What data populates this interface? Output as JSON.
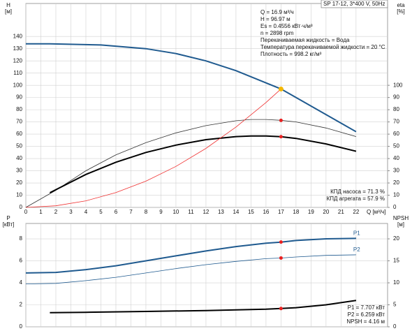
{
  "chart_data": [
    {
      "type": "line",
      "title": "SP 17-12, 3*400 V, 50Hz",
      "ylabel": [
        "H",
        "[м]"
      ],
      "y2label": [
        "eta",
        "[%]"
      ],
      "xlabel": "Q [м³/ч]",
      "xlim": [
        0,
        24.1
      ],
      "xticks": [
        0,
        1,
        2,
        3,
        4,
        5,
        6,
        7,
        8,
        9,
        10,
        11,
        12,
        13,
        14,
        15,
        16,
        17,
        18,
        19,
        20,
        21,
        22
      ],
      "ylim": [
        0,
        167
      ],
      "yticks": [
        0,
        10,
        20,
        30,
        40,
        50,
        60,
        70,
        80,
        90,
        100,
        110,
        120,
        130,
        140
      ],
      "y2lim": [
        0,
        167
      ],
      "y2ticks": [
        0,
        10,
        20,
        30,
        40,
        50,
        60,
        70,
        80,
        90,
        100
      ],
      "grid": true,
      "series": [
        {
          "color": "#1f5a8f",
          "width": 2,
          "x": [
            0,
            1.6,
            5,
            8,
            10,
            12,
            14,
            15,
            16,
            17,
            18,
            19,
            20,
            21,
            22
          ],
          "values": [
            134,
            134,
            133,
            130,
            126,
            120,
            112,
            107,
            102,
            97,
            90,
            83,
            76,
            69,
            62
          ]
        },
        {
          "color": "#333333",
          "width": 0.8,
          "axis": "y2",
          "x": [
            0,
            2,
            4,
            6,
            8,
            10,
            12,
            14,
            15,
            16,
            17,
            18,
            20,
            22
          ],
          "values": [
            0,
            14,
            30,
            43,
            53,
            61,
            67,
            71,
            72,
            72,
            71.3,
            70,
            65,
            58
          ]
        },
        {
          "color": "#000000",
          "width": 2,
          "axis": "y2",
          "x": [
            1.6,
            4,
            6,
            8,
            10,
            12,
            14,
            15,
            16,
            17,
            18,
            20,
            22
          ],
          "values": [
            12,
            27,
            37,
            45,
            51,
            55.5,
            58,
            58.5,
            58.5,
            57.9,
            56.5,
            52,
            46
          ]
        },
        {
          "color": "#f03030",
          "width": 0.8,
          "x": [
            0,
            2,
            4,
            6,
            8,
            10,
            12,
            14,
            16,
            17
          ],
          "values": [
            0,
            1.3,
            5.4,
            12.1,
            21.5,
            33.6,
            48.3,
            65.8,
            85.9,
            97
          ]
        }
      ],
      "points": [
        {
          "x": 17,
          "value": 96.97,
          "color": "#f5b800"
        },
        {
          "x": 17,
          "value": 71.3,
          "color": "#e82020",
          "axis": "y2"
        },
        {
          "x": 17,
          "value": 57.9,
          "color": "#e82020",
          "axis": "y2"
        }
      ],
      "info": [
        "Q = 16.9 м³/ч",
        "H = 96.97 м",
        "Es = 0.4556 кВт·ч/м³",
        "n = 2898 rpm",
        "Перекачиваемая жидкость = Вода",
        "Температура перекачиваемой жидкости = 20 °C",
        "Плотность = 998.2 кг/м³"
      ],
      "notes": [
        "КПД насоса = 71.3 %",
        "КПД агрегата = 57.9 %"
      ]
    },
    {
      "type": "line",
      "ylabel": [
        "P",
        "[кВт]"
      ],
      "y2label": [
        "NPSH",
        "[м]"
      ],
      "xlim": [
        0,
        24.1
      ],
      "xticks": [
        0,
        1,
        2,
        3,
        4,
        5,
        6,
        7,
        8,
        9,
        10,
        11,
        12,
        13,
        14,
        15,
        16,
        17,
        18,
        19,
        20,
        21,
        22
      ],
      "ylim": [
        0,
        9.4
      ],
      "yticks": [
        0,
        2,
        4,
        6,
        8
      ],
      "y2lim": [
        0,
        23.5
      ],
      "y2ticks": [
        0,
        5,
        10,
        15,
        20
      ],
      "grid": true,
      "series": [
        {
          "name": "P1",
          "color": "#1f5a8f",
          "width": 2,
          "x": [
            0,
            2,
            4,
            6,
            8,
            10,
            12,
            14,
            16,
            17,
            18,
            20,
            22
          ],
          "values": [
            4.9,
            4.95,
            5.2,
            5.55,
            6.0,
            6.45,
            6.9,
            7.3,
            7.6,
            7.707,
            7.85,
            8.0,
            8.05
          ]
        },
        {
          "name": "P2",
          "color": "#1f5a8f",
          "width": 0.8,
          "x": [
            0,
            2,
            4,
            6,
            8,
            10,
            12,
            14,
            16,
            17,
            18,
            20,
            22
          ],
          "values": [
            3.9,
            3.95,
            4.2,
            4.5,
            4.9,
            5.3,
            5.65,
            5.95,
            6.2,
            6.259,
            6.35,
            6.5,
            6.55
          ]
        },
        {
          "color": "#000000",
          "width": 2,
          "axis": "y2",
          "x": [
            1.6,
            4,
            8,
            12,
            16,
            17,
            18,
            20,
            22
          ],
          "values": [
            3.2,
            3.3,
            3.5,
            3.7,
            4.0,
            4.16,
            4.35,
            5.0,
            6.0
          ]
        }
      ],
      "points": [
        {
          "x": 17,
          "value": 7.707,
          "color": "#e82020"
        },
        {
          "x": 17,
          "value": 6.259,
          "color": "#e82020"
        },
        {
          "x": 17,
          "value": 4.16,
          "color": "#e82020",
          "axis": "y2"
        }
      ],
      "notes": [
        "P1 = 7.707 кВт",
        "P2 = 6.259 кВт",
        "NPSH = 4.16 м"
      ]
    }
  ]
}
